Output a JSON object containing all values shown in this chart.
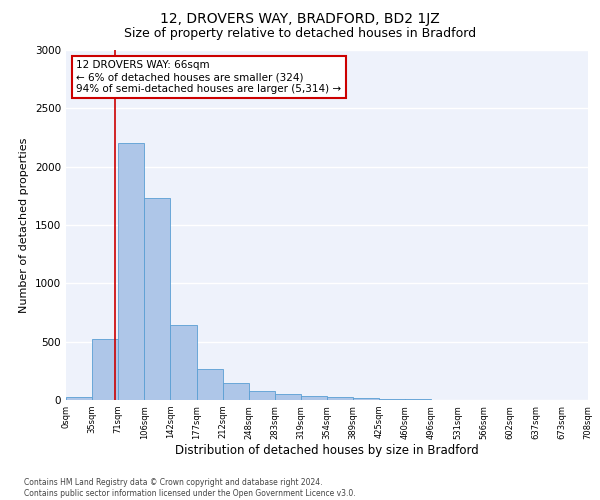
{
  "title": "12, DROVERS WAY, BRADFORD, BD2 1JZ",
  "subtitle": "Size of property relative to detached houses in Bradford",
  "xlabel": "Distribution of detached houses by size in Bradford",
  "ylabel": "Number of detached properties",
  "bar_values": [
    30,
    520,
    2200,
    1730,
    640,
    270,
    145,
    75,
    55,
    35,
    30,
    20,
    10,
    5,
    2,
    1,
    0,
    0,
    0,
    0
  ],
  "bin_labels": [
    "0sqm",
    "35sqm",
    "71sqm",
    "106sqm",
    "142sqm",
    "177sqm",
    "212sqm",
    "248sqm",
    "283sqm",
    "319sqm",
    "354sqm",
    "389sqm",
    "425sqm",
    "460sqm",
    "496sqm",
    "531sqm",
    "566sqm",
    "602sqm",
    "637sqm",
    "673sqm",
    "708sqm"
  ],
  "bar_color": "#aec6e8",
  "bar_edge_color": "#5a9fd4",
  "annotation_text": "12 DROVERS WAY: 66sqm\n← 6% of detached houses are smaller (324)\n94% of semi-detached houses are larger (5,314) →",
  "annotation_box_color": "#ffffff",
  "annotation_box_edge": "#cc0000",
  "vline_color": "#cc0000",
  "ylim": [
    0,
    3000
  ],
  "yticks": [
    0,
    500,
    1000,
    1500,
    2000,
    2500,
    3000
  ],
  "bg_color": "#eef2fb",
  "footer_text": "Contains HM Land Registry data © Crown copyright and database right 2024.\nContains public sector information licensed under the Open Government Licence v3.0.",
  "title_fontsize": 10,
  "subtitle_fontsize": 9,
  "xlabel_fontsize": 8.5,
  "ylabel_fontsize": 8
}
